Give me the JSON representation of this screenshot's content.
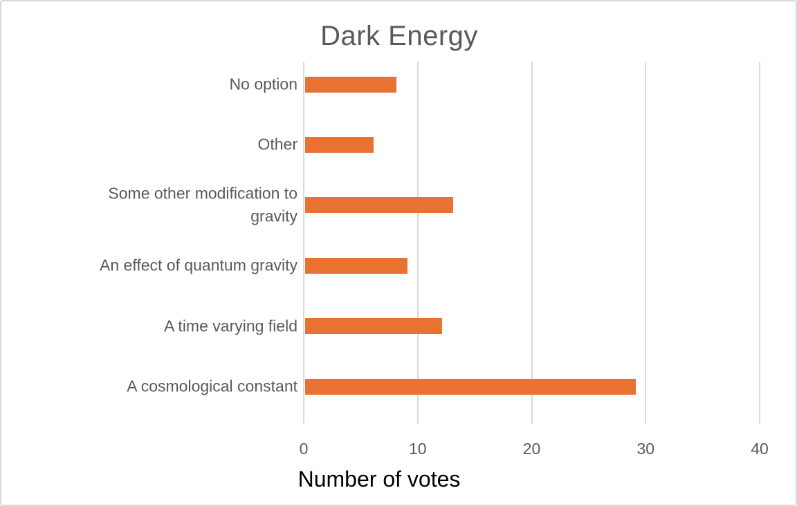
{
  "chart_data": {
    "type": "bar",
    "orientation": "horizontal",
    "title": "Dark Energy",
    "xlabel": "Number of votes",
    "ylabel": "",
    "categories": [
      "No option",
      "Other",
      "Some other modification to gravity",
      "An effect of quantum gravity",
      "A time varying field",
      "A cosmological constant"
    ],
    "values": [
      8,
      6,
      13,
      9,
      12,
      29
    ],
    "xlim": [
      0,
      40
    ],
    "xticks": [
      0,
      10,
      20,
      30,
      40
    ],
    "grid": true,
    "legend": false,
    "colors": {
      "bar": "#E97132",
      "gridline": "#D9D9D9",
      "title": "#595959",
      "category_label": "#595959",
      "tick_label": "#595959",
      "axis_title": "#000000",
      "background": "#FFFFFF",
      "border": "#D9D9D9"
    }
  }
}
